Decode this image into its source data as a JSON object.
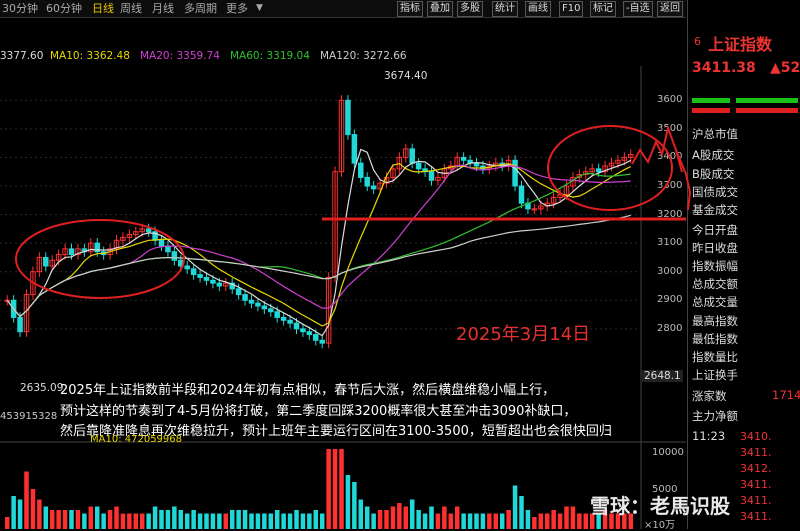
{
  "tabs": [
    "30分钟",
    "60分钟",
    "日线",
    "周线",
    "月线",
    "多周期",
    "更多"
  ],
  "active_tab": "日线",
  "toolbar": [
    "指标",
    "叠加",
    "多股",
    "统计",
    "画线",
    "F10",
    "标记",
    "-自选",
    "返回"
  ],
  "ma_bar": [
    {
      "text": "3377.60",
      "color": "#dddddd"
    },
    {
      "text": "MA10: 3362.48",
      "color": "#e8d800"
    },
    {
      "text": "MA20: 3359.74",
      "color": "#d040d0"
    },
    {
      "text": "MA60: 3319.04",
      "color": "#30c030"
    },
    {
      "text": "MA120: 3272.66",
      "color": "#cccccc"
    }
  ],
  "chart_data": {
    "type": "candlestick",
    "ylim": [
      2600,
      3720
    ],
    "y_ticks": [
      "3600",
      "3500",
      "3400",
      "3300",
      "3200",
      "3100",
      "3000",
      "2900",
      "2800"
    ],
    "annotations": {
      "high": "3674.40",
      "low": "2635.09",
      "right_price": "2648.1",
      "date_text": "2025年3月14日"
    },
    "ma_colors": {
      "close": "#dddddd",
      "ma10": "#e8d800",
      "ma20": "#d040d0",
      "ma60": "#30c030",
      "ma120": "#cccccc"
    },
    "close": [
      2900,
      2840,
      2790,
      2920,
      3000,
      3050,
      3020,
      3040,
      3060,
      3080,
      3060,
      3080,
      3070,
      3100,
      3070,
      3060,
      3080,
      3110,
      3120,
      3130,
      3140,
      3150,
      3140,
      3110,
      3090,
      3070,
      3040,
      3020,
      3010,
      2990,
      2980,
      2970,
      2960,
      2950,
      2960,
      2940,
      2920,
      2900,
      2890,
      2880,
      2870,
      2860,
      2840,
      2830,
      2820,
      2800,
      2790,
      2780,
      2760,
      2750,
      2980,
      3350,
      3600,
      3480,
      3380,
      3330,
      3300,
      3290,
      3310,
      3330,
      3360,
      3400,
      3430,
      3380,
      3360,
      3350,
      3320,
      3330,
      3360,
      3370,
      3400,
      3390,
      3380,
      3370,
      3360,
      3370,
      3380,
      3370,
      3390,
      3300,
      3240,
      3220,
      3220,
      3230,
      3240,
      3260,
      3270,
      3300,
      3330,
      3340,
      3350,
      3360,
      3350,
      3370,
      3380,
      3390,
      3400,
      3410
    ],
    "volume": {
      "y_ticks": [
        "10000",
        "5000"
      ],
      "label": "×10万",
      "ma_label": "MA10: 472059968",
      "left_value": "453915328"
    }
  },
  "commentary": [
    "2025年上证指数前半段和2024年初有点相似，春节后大涨，然后横盘维稳小幅上行，",
    "预计这样的节奏到了4-5月份将打破，第二季度回踩3200概率很大甚至冲击3090补缺口，",
    "然后靠降准降息再次维稳拉升，预计上班年主要运行区间在3100-3500，短暂超出也会很快回归"
  ],
  "sidebar": {
    "title_num": "6",
    "title": "上证指数",
    "price": "3411.38",
    "change": "▲52",
    "items": [
      "沪总市值",
      "A股成交",
      "B股成交",
      "国债成交",
      "基金成交",
      "今日开盘",
      "昨日收盘",
      "指数振幅",
      "总成交额",
      "总成交量",
      "最高指数",
      "最低指数",
      "指数量比",
      "上证换手",
      "涨家数",
      "主力净额"
    ],
    "up_count": "1714",
    "time": "11:23",
    "ticks": [
      "3410.",
      "3411.",
      "3412.",
      "3411.",
      "3411.",
      "3411."
    ]
  },
  "watermark": "雪球：老馬识股"
}
